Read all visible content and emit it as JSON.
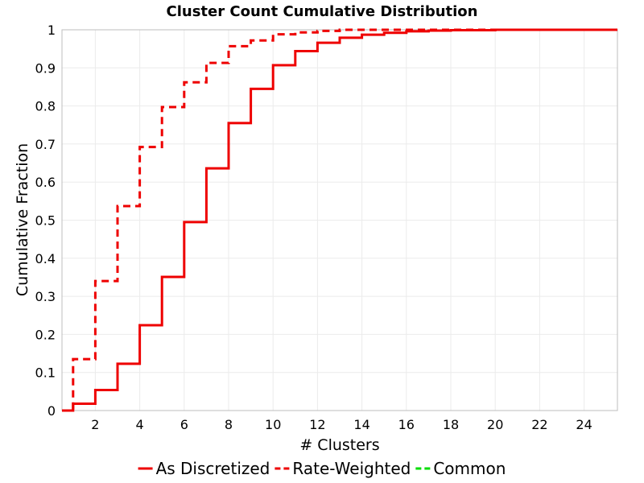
{
  "chart_data": {
    "type": "line",
    "step": true,
    "title": "Cluster Count Cumulative Distribution",
    "xlabel": "# Clusters",
    "ylabel": "Cumulative Fraction",
    "xlim": [
      0.5,
      25.5
    ],
    "ylim": [
      0,
      1
    ],
    "xticks": [
      2,
      4,
      6,
      8,
      10,
      12,
      14,
      16,
      18,
      20,
      22,
      24
    ],
    "yticks": [
      0,
      0.1,
      0.2,
      0.3,
      0.4,
      0.5,
      0.6,
      0.7,
      0.8,
      0.9,
      1
    ],
    "ytick_labels": [
      "0",
      "0.1",
      "0.2",
      "0.3",
      "0.4",
      "0.5",
      "0.6",
      "0.7",
      "0.8",
      "0.9",
      "1"
    ],
    "grid": true,
    "legend_position": "bottom",
    "series": [
      {
        "name": "As Discretized",
        "color": "#ee0000",
        "dash": "solid",
        "x": [
          0.5,
          1,
          2,
          3,
          4,
          5,
          6,
          7,
          8,
          9,
          10,
          11,
          12,
          13,
          14,
          15,
          16,
          17,
          18,
          20,
          25.5
        ],
        "y": [
          0,
          0.018,
          0.054,
          0.123,
          0.224,
          0.351,
          0.495,
          0.636,
          0.755,
          0.845,
          0.907,
          0.944,
          0.966,
          0.979,
          0.987,
          0.992,
          0.996,
          0.998,
          0.999,
          1.0,
          1.0
        ]
      },
      {
        "name": "Rate-Weighted",
        "color": "#ee0000",
        "dash": "dashed",
        "x": [
          0.5,
          1,
          2,
          3,
          4,
          5,
          6,
          7,
          8,
          9,
          10,
          11,
          12,
          13,
          25.5
        ],
        "y": [
          0,
          0.135,
          0.34,
          0.537,
          0.692,
          0.797,
          0.862,
          0.913,
          0.957,
          0.972,
          0.988,
          0.993,
          0.997,
          1.0,
          1.0
        ]
      },
      {
        "name": "Common",
        "color": "#00dd00",
        "dash": "dashed",
        "x": [],
        "y": []
      }
    ]
  }
}
